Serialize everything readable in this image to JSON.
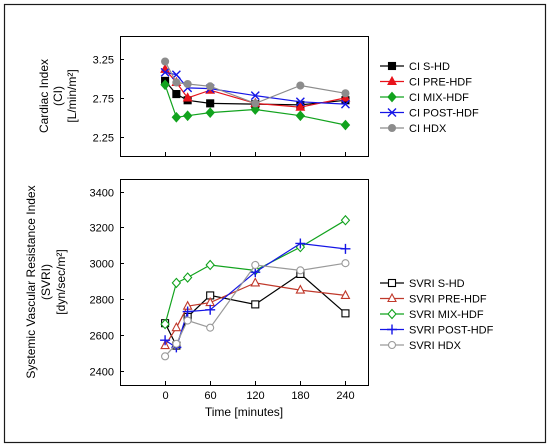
{
  "chart_data": [
    {
      "type": "line",
      "panel": "top",
      "ylabel_lines": [
        "Cardiac Index",
        "(CI)",
        "[L/min/m²]"
      ],
      "x": [
        0,
        15,
        30,
        60,
        120,
        180,
        240
      ],
      "xticks": [
        0,
        60,
        120,
        180,
        240
      ],
      "xlim": [
        -60,
        270
      ],
      "yticks": [
        2.25,
        2.75,
        3.25
      ],
      "ytick_labels": [
        "2.25",
        "2.75",
        "3.25"
      ],
      "ylim": [
        2.0,
        3.55
      ],
      "legend_position": "right",
      "series": [
        {
          "name": "CI S-HD",
          "color": "#000000",
          "marker": "square-filled",
          "values": [
            2.97,
            2.8,
            2.72,
            2.68,
            2.67,
            2.66,
            2.72
          ]
        },
        {
          "name": "CI PRE-HDF",
          "color": "#e8131b",
          "marker": "triangle-filled",
          "values": [
            3.12,
            2.95,
            2.75,
            2.85,
            2.68,
            2.63,
            2.75
          ]
        },
        {
          "name": "CI MIX-HDF",
          "color": "#12a31e",
          "marker": "diamond-filled",
          "values": [
            2.92,
            2.5,
            2.52,
            2.56,
            2.6,
            2.52,
            2.4
          ]
        },
        {
          "name": "CI POST-HDF",
          "color": "#1515e6",
          "marker": "x",
          "values": [
            3.08,
            3.05,
            2.88,
            2.87,
            2.78,
            2.7,
            2.67
          ]
        },
        {
          "name": "CI HDX",
          "color": "#8c8c8c",
          "marker": "circle-filled",
          "values": [
            3.22,
            2.95,
            2.93,
            2.9,
            2.68,
            2.91,
            2.81
          ]
        }
      ]
    },
    {
      "type": "line",
      "panel": "bottom",
      "ylabel_lines": [
        "Systemic Vascular Resistance Index",
        "(SVRI)",
        "[dyn/sec/m²]"
      ],
      "xlabel": "Time [minutes]",
      "x": [
        0,
        15,
        30,
        60,
        120,
        180,
        240
      ],
      "xticks": [
        0,
        60,
        120,
        180,
        240
      ],
      "xtick_labels": [
        "0",
        "60",
        "120",
        "180",
        "240"
      ],
      "xlim": [
        -60,
        270
      ],
      "yticks": [
        2400,
        2600,
        2800,
        3000,
        3200,
        3400
      ],
      "ytick_labels": [
        "2400",
        "2600",
        "2800",
        "3000",
        "3200",
        "3400"
      ],
      "ylim": [
        2320,
        3470
      ],
      "legend_position": "right",
      "series": [
        {
          "name": "SVRI S-HD",
          "color": "#000000",
          "marker": "square-open",
          "values": [
            2665,
            2540,
            2700,
            2820,
            2770,
            2940,
            2720
          ]
        },
        {
          "name": "SVRI PRE-HDF",
          "color": "#c0392b",
          "marker": "triangle-open",
          "values": [
            2540,
            2640,
            2760,
            2780,
            2890,
            2850,
            2820
          ]
        },
        {
          "name": "SVRI MIX-HDF",
          "color": "#12a31e",
          "marker": "diamond-open",
          "values": [
            2660,
            2890,
            2920,
            2990,
            2960,
            3090,
            3240
          ]
        },
        {
          "name": "SVRI POST-HDF",
          "color": "#1515e6",
          "marker": "plus",
          "values": [
            2570,
            2530,
            2730,
            2740,
            2950,
            3110,
            3080
          ]
        },
        {
          "name": "SVRI HDX",
          "color": "#9a9a9a",
          "marker": "circle-open",
          "values": [
            2480,
            2550,
            2680,
            2640,
            2990,
            2960,
            3000
          ]
        }
      ]
    }
  ]
}
